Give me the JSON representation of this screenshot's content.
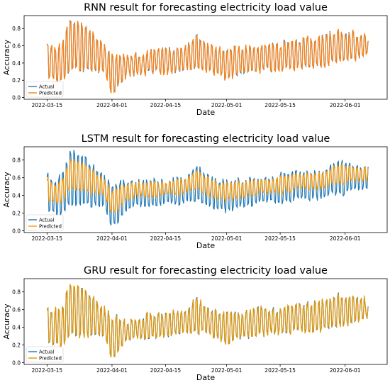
{
  "figure": {
    "legend_location": "lower-left",
    "colors": {
      "actual": "#1f77b4",
      "predicted_rnn": "#ff7f0e",
      "predicted_lstm": "#ff9900",
      "predicted_gru": "#e69500"
    },
    "x_tick_labels": [
      "2022-03-15",
      "2022-04-01",
      "2022-04-15",
      "2022-05-01",
      "2022-05-15",
      "2022-06-01"
    ]
  },
  "chart_data": [
    {
      "type": "line",
      "title": "RNN result for forecasting electricity load value",
      "xlabel": "Date",
      "ylabel": "Accuracy",
      "ylim": [
        -0.02,
        0.95
      ],
      "yticks": [
        "0.0",
        "0.2",
        "0.4",
        "0.6",
        "0.8"
      ],
      "xlim": [
        "2022-03-09",
        "2022-06-12"
      ],
      "x_range": [
        "2022-03-15",
        "2022-06-07"
      ],
      "grid": false,
      "legend": "lower-left",
      "approx_envelope": {
        "dates": [
          "2022-03-15",
          "2022-03-17",
          "2022-03-19",
          "2022-03-21",
          "2022-03-24",
          "2022-03-27",
          "2022-03-30",
          "2022-04-01",
          "2022-04-05",
          "2022-04-10",
          "2022-04-15",
          "2022-04-20",
          "2022-04-23",
          "2022-04-27",
          "2022-05-01",
          "2022-05-05",
          "2022-05-10",
          "2022-05-15",
          "2022-05-20",
          "2022-05-25",
          "2022-05-30",
          "2022-06-03",
          "2022-06-07"
        ],
        "high": [
          0.68,
          0.6,
          0.66,
          0.93,
          0.88,
          0.76,
          0.63,
          0.55,
          0.5,
          0.55,
          0.6,
          0.62,
          0.75,
          0.62,
          0.6,
          0.6,
          0.63,
          0.65,
          0.7,
          0.7,
          0.8,
          0.78,
          0.72
        ],
        "low": [
          0.2,
          0.18,
          0.16,
          0.3,
          0.3,
          0.3,
          0.28,
          0.0,
          0.25,
          0.26,
          0.28,
          0.3,
          0.33,
          0.28,
          0.2,
          0.26,
          0.3,
          0.3,
          0.34,
          0.34,
          0.4,
          0.42,
          0.48
        ]
      },
      "series": [
        {
          "name": "Actual"
        },
        {
          "name": "Predicted"
        }
      ]
    },
    {
      "type": "line",
      "title": "LSTM result for forecasting electricity load value",
      "xlabel": "Date",
      "ylabel": "Accuracy",
      "ylim": [
        -0.02,
        0.95
      ],
      "yticks": [
        "0.0",
        "0.2",
        "0.4",
        "0.6",
        "0.8"
      ],
      "xlim": [
        "2022-03-09",
        "2022-06-12"
      ],
      "x_range": [
        "2022-03-15",
        "2022-06-07"
      ],
      "grid": false,
      "legend": "lower-left",
      "approx_envelope": {
        "dates": [
          "2022-03-15",
          "2022-03-17",
          "2022-03-19",
          "2022-03-21",
          "2022-03-24",
          "2022-03-27",
          "2022-03-30",
          "2022-04-01",
          "2022-04-05",
          "2022-04-10",
          "2022-04-15",
          "2022-04-20",
          "2022-04-23",
          "2022-04-27",
          "2022-05-01",
          "2022-05-05",
          "2022-05-10",
          "2022-05-15",
          "2022-05-20",
          "2022-05-25",
          "2022-05-30",
          "2022-06-03",
          "2022-06-07"
        ],
        "high": [
          0.68,
          0.6,
          0.66,
          0.93,
          0.88,
          0.76,
          0.63,
          0.55,
          0.58,
          0.58,
          0.6,
          0.62,
          0.75,
          0.62,
          0.6,
          0.6,
          0.63,
          0.65,
          0.7,
          0.7,
          0.8,
          0.78,
          0.72
        ],
        "low": [
          0.2,
          0.18,
          0.16,
          0.28,
          0.28,
          0.28,
          0.26,
          0.0,
          0.24,
          0.26,
          0.28,
          0.3,
          0.33,
          0.26,
          0.2,
          0.26,
          0.3,
          0.3,
          0.34,
          0.34,
          0.4,
          0.42,
          0.48
        ]
      },
      "series": [
        {
          "name": "Actual"
        },
        {
          "name": "Predicted"
        }
      ]
    },
    {
      "type": "line",
      "title": "GRU result for forecasting electricity load value",
      "xlabel": "Date",
      "ylabel": "Accuracy",
      "ylim": [
        -0.02,
        0.95
      ],
      "yticks": [
        "0.0",
        "0.2",
        "0.4",
        "0.6",
        "0.8"
      ],
      "xlim": [
        "2022-03-09",
        "2022-06-12"
      ],
      "x_range": [
        "2022-03-15",
        "2022-06-07"
      ],
      "grid": false,
      "legend": "lower-left",
      "approx_envelope": {
        "dates": [
          "2022-03-15",
          "2022-03-17",
          "2022-03-19",
          "2022-03-21",
          "2022-03-24",
          "2022-03-27",
          "2022-03-30",
          "2022-04-01",
          "2022-04-05",
          "2022-04-10",
          "2022-04-15",
          "2022-04-20",
          "2022-04-23",
          "2022-04-27",
          "2022-05-01",
          "2022-05-05",
          "2022-05-10",
          "2022-05-15",
          "2022-05-20",
          "2022-05-25",
          "2022-05-30",
          "2022-06-03",
          "2022-06-07"
        ],
        "high": [
          0.68,
          0.6,
          0.66,
          0.93,
          0.88,
          0.76,
          0.63,
          0.55,
          0.5,
          0.55,
          0.6,
          0.62,
          0.75,
          0.62,
          0.6,
          0.6,
          0.63,
          0.65,
          0.7,
          0.7,
          0.8,
          0.78,
          0.72
        ],
        "low": [
          0.2,
          0.18,
          0.16,
          0.3,
          0.3,
          0.3,
          0.28,
          0.0,
          0.25,
          0.26,
          0.28,
          0.3,
          0.33,
          0.28,
          0.2,
          0.26,
          0.3,
          0.3,
          0.34,
          0.34,
          0.4,
          0.42,
          0.48
        ]
      },
      "series": [
        {
          "name": "Actual"
        },
        {
          "name": "Predicted"
        }
      ]
    }
  ]
}
